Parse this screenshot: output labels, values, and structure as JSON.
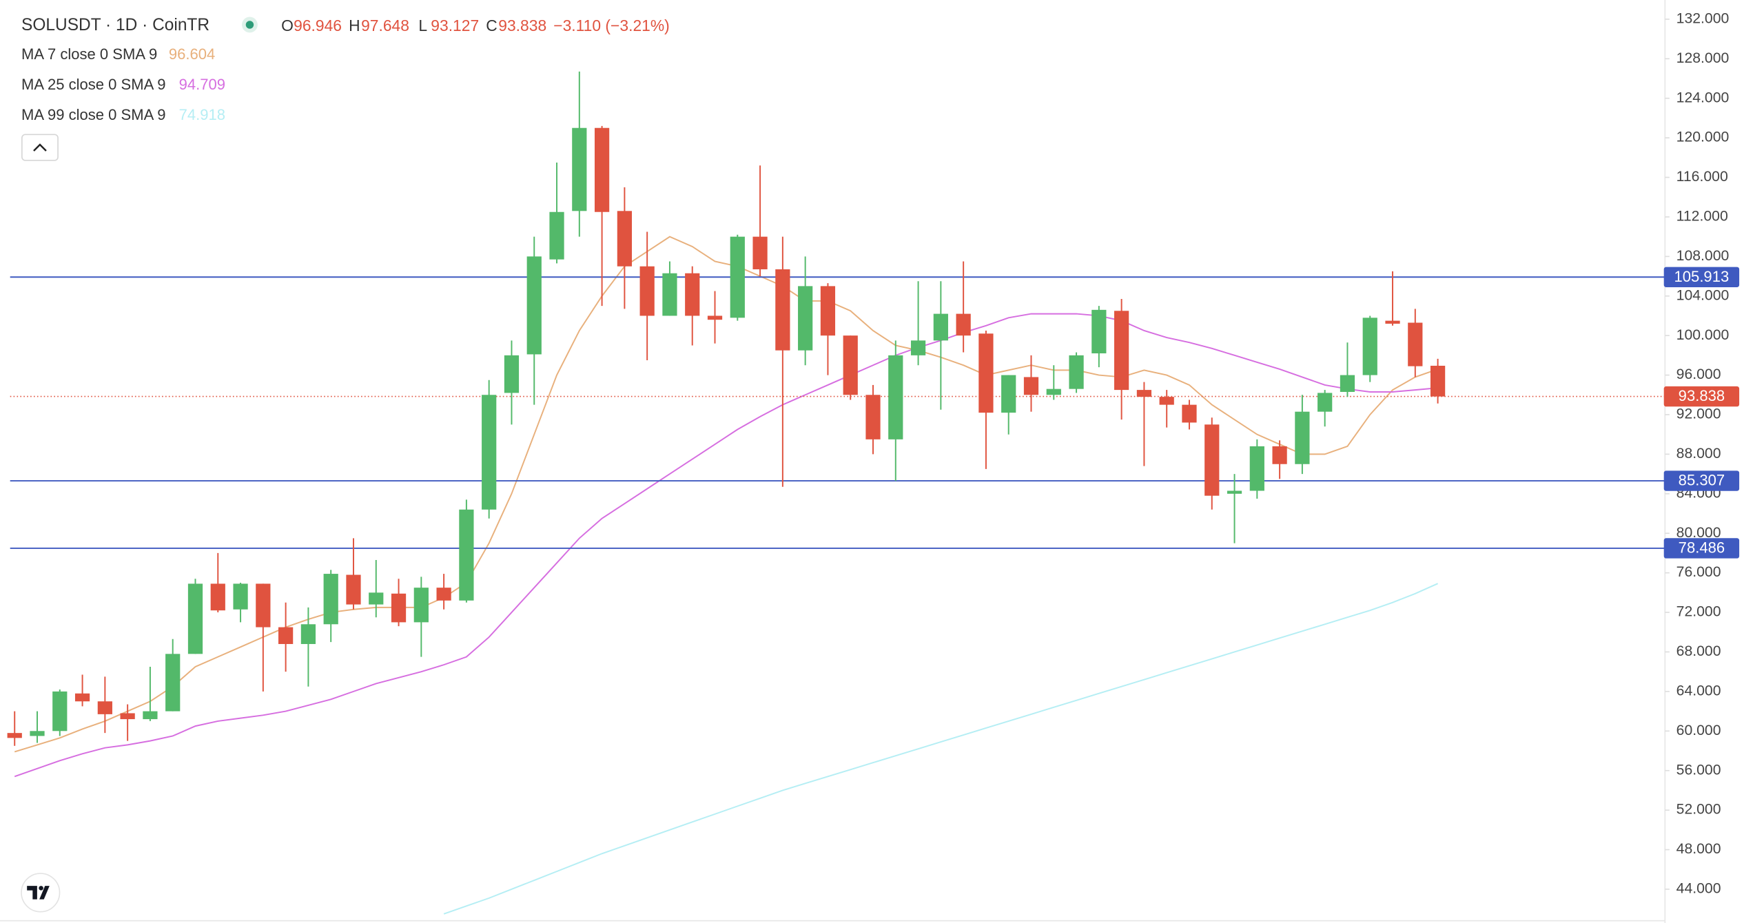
{
  "chart_data": {
    "type": "candlestick",
    "symbol": "SOLUSDT · 1D · CoinTR",
    "ohlc_legend": [
      {
        "label": "O",
        "value": "96.946"
      },
      {
        "label": "H",
        "value": "97.648"
      },
      {
        "label": "L",
        "value": "93.127"
      },
      {
        "label": "C",
        "value": "93.838"
      }
    ],
    "change": "−3.110 (−3.21%)",
    "up_color": "#53b96a",
    "down_color": "#e0533f",
    "open": [
      59.8,
      59.5,
      60,
      63.8,
      63,
      61.8,
      61.2,
      62,
      67.8,
      74.9,
      72.3,
      74.9,
      70.5,
      68.8,
      70.8,
      75.8,
      72.8,
      73.9,
      71,
      74.5,
      73.2,
      82.4,
      94.2,
      98.1,
      107.7,
      112.6,
      121,
      112.6,
      107,
      102,
      106.3,
      102,
      101.8,
      110,
      106.7,
      98.5,
      105,
      100,
      94,
      89.5,
      98,
      99.5,
      102.2,
      100.2,
      92.2,
      95.8,
      94,
      94.6,
      98.2,
      102.5,
      94.5,
      93.8,
      93,
      91,
      84,
      84.3,
      88.8,
      87,
      92.3,
      94.3,
      96,
      101.5,
      101.3,
      96.946
    ],
    "high": [
      62,
      62,
      64.2,
      65.7,
      65.5,
      62.7,
      66.5,
      69.3,
      75.4,
      78,
      75,
      74.9,
      73,
      72.5,
      76.3,
      79.5,
      77.3,
      75.4,
      75.6,
      75.9,
      83.4,
      95.5,
      99.5,
      110,
      117.5,
      126.7,
      121.2,
      115,
      110.5,
      107.5,
      107,
      104.5,
      110.2,
      117.2,
      110,
      108,
      105.3,
      100,
      95,
      99.5,
      105.5,
      105.5,
      107.5,
      100.5,
      96,
      98,
      97,
      98.3,
      103,
      103.7,
      95.3,
      94.5,
      93.5,
      91.7,
      86,
      89.5,
      89.4,
      94,
      94.5,
      99.3,
      102,
      106.5,
      102.7,
      97.648
    ],
    "low": [
      58.5,
      58.8,
      59.5,
      62.5,
      59.8,
      59,
      61,
      62,
      67.8,
      72,
      71,
      64,
      66,
      64.5,
      69,
      72.3,
      71.5,
      70.6,
      67.5,
      72.3,
      73,
      81.5,
      91,
      93,
      107.3,
      110,
      103,
      102.7,
      97.5,
      102,
      99,
      99.2,
      101.5,
      106,
      84.7,
      97,
      96,
      93.5,
      88,
      85.3,
      97,
      92.5,
      98.3,
      86.5,
      90,
      92.3,
      93.5,
      94.2,
      96.8,
      91.5,
      86.8,
      90.7,
      90.5,
      82.4,
      79,
      83.5,
      85.5,
      86,
      90.8,
      93.8,
      95.3,
      101,
      95.8,
      93.127
    ],
    "close": [
      59.3,
      60,
      64,
      63,
      61.7,
      61.2,
      62,
      67.8,
      74.9,
      72.2,
      74.9,
      70.5,
      68.8,
      70.8,
      75.9,
      72.8,
      74,
      71,
      74.5,
      73.2,
      82.4,
      94,
      98,
      108,
      112.5,
      121,
      112.5,
      107,
      102,
      106.3,
      102,
      101.6,
      110,
      106.7,
      98.5,
      105,
      100,
      94,
      89.5,
      98,
      99.5,
      102.2,
      100,
      92.2,
      96,
      94,
      94.6,
      98,
      102.6,
      94.5,
      93.8,
      93,
      91.2,
      83.8,
      84.3,
      88.8,
      87,
      92.3,
      94.2,
      96,
      101.8,
      101.2,
      96.9,
      93.838
    ],
    "series": [
      {
        "name": "MA 7 close 0 SMA 9",
        "value_label": "96.604",
        "color": "#e8b07c",
        "values": [
          57.9,
          58.6,
          59.3,
          60.2,
          61,
          62,
          63,
          64.5,
          66.5,
          67.5,
          68.5,
          69.5,
          70.5,
          71.3,
          72,
          72.3,
          72.5,
          72.5,
          72.5,
          73.5,
          75,
          79,
          84,
          90,
          96,
          100.5,
          104,
          107,
          108.5,
          110,
          109,
          107.5,
          107,
          106,
          105,
          103.5,
          103.5,
          102.5,
          100.5,
          99,
          98.5,
          97.8,
          97,
          96,
          96.5,
          97,
          96.5,
          96.5,
          96,
          95.8,
          96.5,
          96,
          95,
          93,
          91.5,
          90,
          89,
          88,
          88,
          88.8,
          92,
          94.5,
          95.8,
          96.604
        ]
      },
      {
        "name": "MA 25 close 0 SMA 9",
        "value_label": "94.709",
        "color": "#d66ee0",
        "values": [
          55.4,
          56.2,
          57,
          57.7,
          58.3,
          58.6,
          59,
          59.5,
          60.5,
          61,
          61.3,
          61.6,
          62,
          62.6,
          63.2,
          64,
          64.8,
          65.4,
          66,
          66.7,
          67.5,
          69.5,
          72,
          74.5,
          77,
          79.5,
          81.5,
          83,
          84.5,
          86,
          87.5,
          89,
          90.5,
          91.8,
          93,
          94,
          95,
          96,
          97,
          98,
          98.8,
          99.5,
          100.3,
          101,
          101.8,
          102.2,
          102.2,
          102.2,
          102,
          101.5,
          100.5,
          99.8,
          99.3,
          98.7,
          98,
          97.3,
          96.6,
          95.8,
          95,
          94.6,
          94.3,
          94.3,
          94.5,
          94.709
        ]
      },
      {
        "name": "MA 99 close 0 SMA 9",
        "value_label": "74.918",
        "color": "#b5eef4",
        "values": [
          null,
          null,
          null,
          null,
          null,
          null,
          null,
          null,
          null,
          null,
          null,
          null,
          null,
          null,
          null,
          null,
          null,
          null,
          null,
          41.5,
          42.3,
          43.1,
          44,
          44.9,
          45.8,
          46.7,
          47.6,
          48.4,
          49.2,
          50,
          50.8,
          51.6,
          52.4,
          53.2,
          54,
          54.7,
          55.4,
          56.1,
          56.8,
          57.5,
          58.2,
          58.9,
          59.6,
          60.3,
          61,
          61.7,
          62.4,
          63.1,
          63.8,
          64.5,
          65.2,
          65.9,
          66.6,
          67.3,
          68,
          68.7,
          69.4,
          70.1,
          70.8,
          71.5,
          72.2,
          73,
          73.9,
          74.918
        ]
      }
    ],
    "levels": [
      {
        "value": 105.913,
        "label": "105.913",
        "color": "#3f5ac0"
      },
      {
        "value": 85.307,
        "label": "85.307",
        "color": "#3f5ac0"
      },
      {
        "value": 78.486,
        "label": "78.486",
        "color": "#3f5ac0"
      }
    ],
    "last_price": {
      "value": 93.838,
      "label": "93.838",
      "color": "#e0533f"
    },
    "ylim": [
      40.81,
      133.94
    ],
    "yticks": [
      {
        "value": 132,
        "label": "132.000"
      },
      {
        "value": 128,
        "label": "128.000"
      },
      {
        "value": 124,
        "label": "124.000"
      },
      {
        "value": 120,
        "label": "120.000"
      },
      {
        "value": 116,
        "label": "116.000"
      },
      {
        "value": 112,
        "label": "112.000"
      },
      {
        "value": 108,
        "label": "108.000"
      },
      {
        "value": 104,
        "label": "104.000"
      },
      {
        "value": 100,
        "label": "100.000"
      },
      {
        "value": 96,
        "label": "96.000"
      },
      {
        "value": 92,
        "label": "92.000"
      },
      {
        "value": 88,
        "label": "88.000"
      },
      {
        "value": 84,
        "label": "84.000"
      },
      {
        "value": 80,
        "label": "80.000"
      },
      {
        "value": 76,
        "label": "76.000"
      },
      {
        "value": 72,
        "label": "72.000"
      },
      {
        "value": 68,
        "label": "68.000"
      },
      {
        "value": 64,
        "label": "64.000"
      },
      {
        "value": 60,
        "label": "60.000"
      },
      {
        "value": 56,
        "label": "56.000"
      },
      {
        "value": 52,
        "label": "52.000"
      },
      {
        "value": 48,
        "label": "48.000"
      },
      {
        "value": 44,
        "label": "44.000"
      }
    ],
    "grid": false
  }
}
